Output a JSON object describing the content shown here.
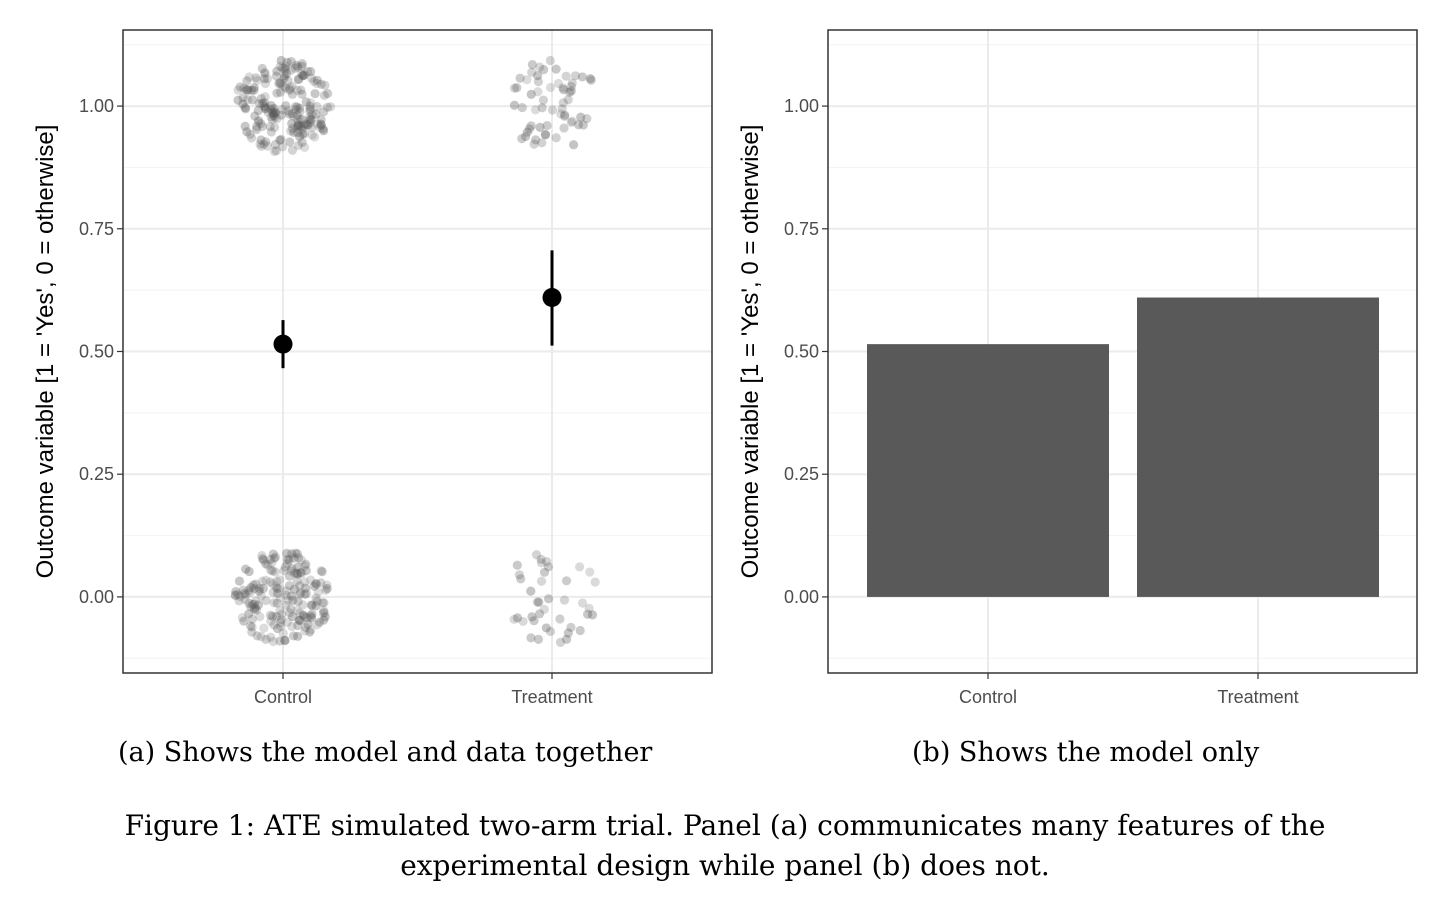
{
  "chart_data": [
    {
      "type": "scatter",
      "panel": "a",
      "ylabel": "Outcome variable [1 = 'Yes', 0 = otherwise]",
      "xlabel": "",
      "categories": [
        "Control",
        "Treatment"
      ],
      "ylim": [
        -0.155,
        1.155
      ],
      "yticks": [
        "0.00",
        "0.25",
        "0.50",
        "0.75",
        "1.00"
      ],
      "ytick_values": [
        0,
        0.25,
        0.5,
        0.75,
        1
      ],
      "grid": true,
      "point_estimates": [
        {
          "category": "Control",
          "mean": 0.515,
          "ci_low": 0.466,
          "ci_high": 0.564
        },
        {
          "category": "Treatment",
          "mean": 0.61,
          "ci_low": 0.512,
          "ci_high": 0.706
        }
      ],
      "raw_data": [
        {
          "category": "Control",
          "outcome": 1,
          "n_approx": 190
        },
        {
          "category": "Control",
          "outcome": 0,
          "n_approx": 180
        },
        {
          "category": "Treatment",
          "outcome": 1,
          "n_approx": 60
        },
        {
          "category": "Treatment",
          "outcome": 0,
          "n_approx": 40
        }
      ],
      "point_color": "#000000",
      "jitter_color": "#555555"
    },
    {
      "type": "bar",
      "panel": "b",
      "ylabel": "Outcome variable [1 = 'Yes', 0 = otherwise]",
      "xlabel": "",
      "categories": [
        "Control",
        "Treatment"
      ],
      "values": [
        0.515,
        0.61
      ],
      "ylim": [
        -0.155,
        1.155
      ],
      "yticks": [
        "0.00",
        "0.25",
        "0.50",
        "0.75",
        "1.00"
      ],
      "ytick_values": [
        0,
        0.25,
        0.5,
        0.75,
        1
      ],
      "grid": true,
      "bar_color": "#595959"
    }
  ],
  "captions": {
    "panel_a": "(a) Shows the model and data together",
    "panel_b": "(b) Shows the model only",
    "figure": "Figure 1: ATE simulated two-arm trial. Panel (a) communicates many features of the experimental design while panel (b) does not."
  }
}
